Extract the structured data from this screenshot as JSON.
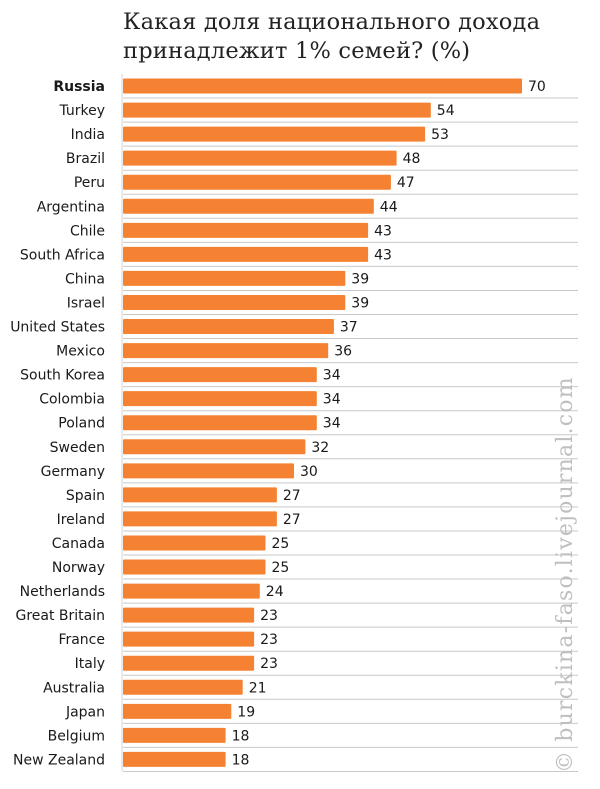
{
  "title": {
    "line1": "Какая доля национального дохода",
    "line2": "принадлежит 1% семей? (%)"
  },
  "watermark": "© burckina-faso.livejournal.com",
  "colors": {
    "bar": "#F58232",
    "gridline": "#c9c9c9",
    "label": "#1a1a1a"
  },
  "chart_data": {
    "type": "bar",
    "orientation": "horizontal",
    "title": "Какая доля национального дохода принадлежит 1% семей? (%)",
    "categories": [
      "Russia",
      "Turkey",
      "India",
      "Brazil",
      "Peru",
      "Argentina",
      "Chile",
      "South Africa",
      "China",
      "Israel",
      "United States",
      "Mexico",
      "South Korea",
      "Colombia",
      "Poland",
      "Sweden",
      "Germany",
      "Spain",
      "Ireland",
      "Canada",
      "Norway",
      "Netherlands",
      "Great Britain",
      "France",
      "Italy",
      "Australia",
      "Japan",
      "Belgium",
      "New Zealand"
    ],
    "values": [
      70,
      54,
      53,
      48,
      47,
      44,
      43,
      43,
      39,
      39,
      37,
      36,
      34,
      34,
      34,
      32,
      30,
      27,
      27,
      25,
      25,
      24,
      23,
      23,
      23,
      21,
      19,
      18,
      18
    ],
    "highlight": "Russia",
    "xlim": [
      0,
      75
    ],
    "grid": true,
    "data_labels": true,
    "legend": "none"
  }
}
